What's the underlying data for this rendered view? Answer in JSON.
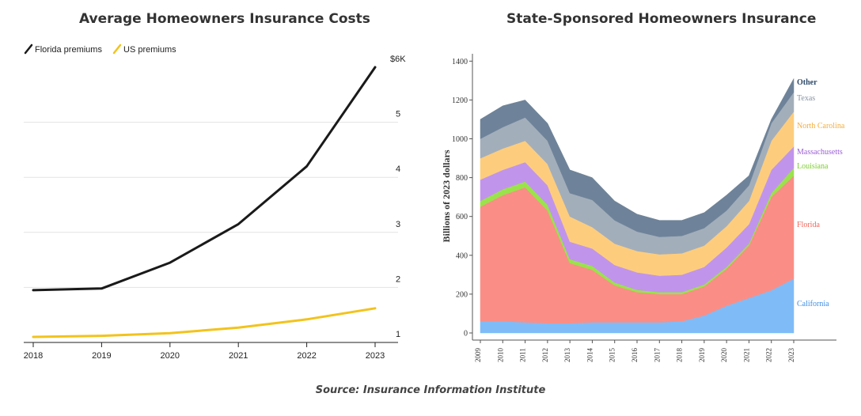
{
  "source": "Source: Insurance Information Institute",
  "chart_data": [
    {
      "type": "line",
      "title": "Average Homeowners Insurance Costs",
      "x": [
        "2018",
        "2019",
        "2020",
        "2021",
        "2022",
        "2023"
      ],
      "series": [
        {
          "name": "Florida premiums",
          "color": "#1a1a1a",
          "values": [
            1.95,
            1.98,
            2.45,
            3.15,
            4.2,
            6.0
          ]
        },
        {
          "name": "US premiums",
          "color": "#f2c31c",
          "values": [
            1.1,
            1.12,
            1.17,
            1.27,
            1.42,
            1.62
          ]
        }
      ],
      "y_ticks": [
        {
          "value": 1,
          "label": "1"
        },
        {
          "value": 2,
          "label": "2"
        },
        {
          "value": 3,
          "label": "3"
        },
        {
          "value": 4,
          "label": "4"
        },
        {
          "value": 5,
          "label": "5"
        },
        {
          "value": 6,
          "label": "$6K"
        }
      ],
      "ylim": [
        0.85,
        6.0
      ],
      "legend": "top-left",
      "grid": true
    },
    {
      "type": "area",
      "title": "State-Sponsored Homeowners Insurance",
      "ylabel": "Billions of 2023 dollars",
      "x": [
        "2009",
        "2010",
        "2011",
        "2012",
        "2013",
        "2014",
        "2015",
        "2016",
        "2017",
        "2018",
        "2019",
        "2020",
        "2021",
        "2022",
        "2023"
      ],
      "y_ticks": [
        "0",
        "200",
        "400",
        "600",
        "800",
        "1000",
        "1200",
        "1400"
      ],
      "ylim": [
        0,
        1400
      ],
      "stacked": true,
      "series": [
        {
          "name": "California",
          "color": "#7fbcf7",
          "values": [
            60,
            60,
            55,
            50,
            50,
            55,
            55,
            55,
            55,
            60,
            90,
            140,
            180,
            220,
            280
          ]
        },
        {
          "name": "Florida",
          "color": "#fa8e86",
          "values": [
            590,
            650,
            695,
            580,
            310,
            270,
            190,
            155,
            145,
            140,
            150,
            190,
            270,
            480,
            530
          ]
        },
        {
          "name": "Louisiana",
          "color": "#9ae34a",
          "values": [
            30,
            30,
            30,
            30,
            20,
            20,
            15,
            12,
            10,
            10,
            10,
            10,
            10,
            20,
            40
          ]
        },
        {
          "name": "Massachusetts",
          "color": "#c194ec",
          "values": [
            110,
            100,
            100,
            100,
            90,
            90,
            90,
            90,
            85,
            90,
            90,
            100,
            100,
            120,
            110
          ]
        },
        {
          "name": "North Carolina",
          "color": "#fdcd7d",
          "values": [
            110,
            110,
            110,
            110,
            130,
            110,
            110,
            110,
            110,
            110,
            110,
            110,
            120,
            150,
            180
          ]
        },
        {
          "name": "Texas",
          "color": "#a3aebb",
          "values": [
            100,
            110,
            120,
            120,
            120,
            140,
            120,
            100,
            90,
            90,
            90,
            80,
            80,
            90,
            100
          ]
        },
        {
          "name": "Other",
          "color": "#6e8399",
          "values": [
            100,
            110,
            90,
            90,
            120,
            115,
            100,
            90,
            85,
            80,
            80,
            80,
            50,
            20,
            70
          ]
        }
      ],
      "legend": "right, inline labels"
    }
  ]
}
